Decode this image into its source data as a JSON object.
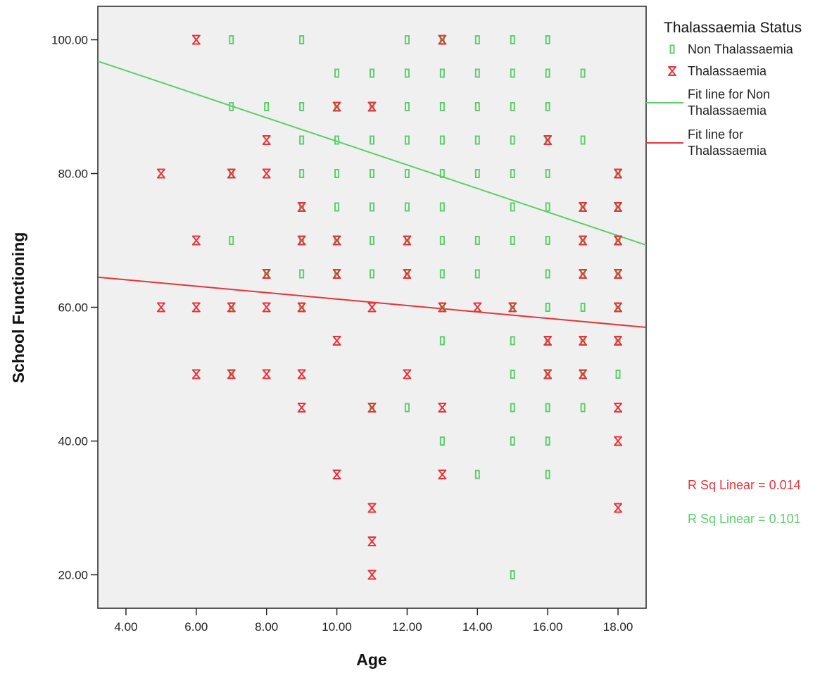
{
  "chart_data": {
    "type": "scatter",
    "title": "",
    "xlabel": "Age",
    "ylabel": "School Functioning",
    "xlim": [
      3.2,
      18.8
    ],
    "ylim": [
      15,
      105
    ],
    "x_ticks": [
      "4.00",
      "6.00",
      "8.00",
      "10.00",
      "12.00",
      "14.00",
      "16.00",
      "18.00"
    ],
    "x_tick_values": [
      4,
      6,
      8,
      10,
      12,
      14,
      16,
      18
    ],
    "y_ticks": [
      "20.00",
      "40.00",
      "60.00",
      "80.00",
      "100.00"
    ],
    "y_tick_values": [
      20,
      40,
      60,
      80,
      100
    ],
    "grid": false,
    "plot_background": "#f0f0f0",
    "legend": {
      "title": "Thalassaemia Status",
      "placement": "right",
      "entries": {
        "non": "Non Thalassaemia",
        "thal": "Thalassaemia",
        "fit_non": [
          "Fit line for Non",
          "Thalassaemia"
        ],
        "fit_thal": [
          "Fit line for",
          "Thalassaemia"
        ]
      }
    },
    "r_squared": {
      "thal": "R Sq Linear = 0.014",
      "non": "R Sq Linear = 0.101"
    },
    "series": [
      {
        "name": "Non Thalassaemia",
        "marker": "bar-icon",
        "color": "#5ccf6a",
        "points": [
          [
            7,
            100
          ],
          [
            9,
            100
          ],
          [
            12,
            100
          ],
          [
            13,
            100
          ],
          [
            14,
            100
          ],
          [
            15,
            100
          ],
          [
            16,
            100
          ],
          [
            10,
            95
          ],
          [
            11,
            95
          ],
          [
            12,
            95
          ],
          [
            13,
            95
          ],
          [
            14,
            95
          ],
          [
            15,
            95
          ],
          [
            16,
            95
          ],
          [
            17,
            95
          ],
          [
            7,
            90
          ],
          [
            8,
            90
          ],
          [
            9,
            90
          ],
          [
            10,
            90
          ],
          [
            11,
            90
          ],
          [
            12,
            90
          ],
          [
            13,
            90
          ],
          [
            14,
            90
          ],
          [
            15,
            90
          ],
          [
            16,
            90
          ],
          [
            9,
            85
          ],
          [
            10,
            85
          ],
          [
            11,
            85
          ],
          [
            12,
            85
          ],
          [
            13,
            85
          ],
          [
            14,
            85
          ],
          [
            15,
            85
          ],
          [
            16,
            85
          ],
          [
            17,
            85
          ],
          [
            7,
            80
          ],
          [
            9,
            80
          ],
          [
            10,
            80
          ],
          [
            11,
            80
          ],
          [
            12,
            80
          ],
          [
            13,
            80
          ],
          [
            14,
            80
          ],
          [
            15,
            80
          ],
          [
            16,
            80
          ],
          [
            18,
            80
          ],
          [
            9,
            75
          ],
          [
            10,
            75
          ],
          [
            11,
            75
          ],
          [
            12,
            75
          ],
          [
            13,
            75
          ],
          [
            15,
            75
          ],
          [
            16,
            75
          ],
          [
            17,
            75
          ],
          [
            18,
            75
          ],
          [
            7,
            70
          ],
          [
            9,
            70
          ],
          [
            10,
            70
          ],
          [
            11,
            70
          ],
          [
            12,
            70
          ],
          [
            13,
            70
          ],
          [
            14,
            70
          ],
          [
            15,
            70
          ],
          [
            16,
            70
          ],
          [
            17,
            70
          ],
          [
            18,
            70
          ],
          [
            8,
            65
          ],
          [
            9,
            65
          ],
          [
            10,
            65
          ],
          [
            11,
            65
          ],
          [
            12,
            65
          ],
          [
            13,
            65
          ],
          [
            14,
            65
          ],
          [
            16,
            65
          ],
          [
            17,
            65
          ],
          [
            18,
            65
          ],
          [
            7,
            60
          ],
          [
            9,
            60
          ],
          [
            13,
            60
          ],
          [
            15,
            60
          ],
          [
            16,
            60
          ],
          [
            17,
            60
          ],
          [
            18,
            60
          ],
          [
            13,
            55
          ],
          [
            15,
            55
          ],
          [
            16,
            55
          ],
          [
            17,
            55
          ],
          [
            18,
            55
          ],
          [
            7,
            50
          ],
          [
            15,
            50
          ],
          [
            16,
            50
          ],
          [
            17,
            50
          ],
          [
            18,
            50
          ],
          [
            11,
            45
          ],
          [
            12,
            45
          ],
          [
            15,
            45
          ],
          [
            16,
            45
          ],
          [
            17,
            45
          ],
          [
            13,
            40
          ],
          [
            15,
            40
          ],
          [
            16,
            40
          ],
          [
            14,
            35
          ],
          [
            16,
            35
          ],
          [
            15,
            20
          ]
        ]
      },
      {
        "name": "Thalassaemia",
        "marker": "hourglass-icon",
        "color": "#e8333a",
        "points": [
          [
            6,
            100
          ],
          [
            13,
            100
          ],
          [
            10,
            90
          ],
          [
            11,
            90
          ],
          [
            8,
            85
          ],
          [
            16,
            85
          ],
          [
            5,
            80
          ],
          [
            7,
            80
          ],
          [
            8,
            80
          ],
          [
            18,
            80
          ],
          [
            9,
            75
          ],
          [
            17,
            75
          ],
          [
            18,
            75
          ],
          [
            6,
            70
          ],
          [
            9,
            70
          ],
          [
            10,
            70
          ],
          [
            12,
            70
          ],
          [
            17,
            70
          ],
          [
            18,
            70
          ],
          [
            8,
            65
          ],
          [
            10,
            65
          ],
          [
            12,
            65
          ],
          [
            17,
            65
          ],
          [
            18,
            65
          ],
          [
            5,
            60
          ],
          [
            6,
            60
          ],
          [
            7,
            60
          ],
          [
            8,
            60
          ],
          [
            9,
            60
          ],
          [
            11,
            60
          ],
          [
            13,
            60
          ],
          [
            14,
            60
          ],
          [
            15,
            60
          ],
          [
            18,
            60
          ],
          [
            10,
            55
          ],
          [
            16,
            55
          ],
          [
            17,
            55
          ],
          [
            18,
            55
          ],
          [
            6,
            50
          ],
          [
            7,
            50
          ],
          [
            8,
            50
          ],
          [
            9,
            50
          ],
          [
            12,
            50
          ],
          [
            16,
            50
          ],
          [
            17,
            50
          ],
          [
            9,
            45
          ],
          [
            11,
            45
          ],
          [
            13,
            45
          ],
          [
            18,
            45
          ],
          [
            18,
            40
          ],
          [
            10,
            35
          ],
          [
            13,
            35
          ],
          [
            11,
            30
          ],
          [
            18,
            30
          ],
          [
            11,
            25
          ],
          [
            11,
            20
          ]
        ]
      }
    ],
    "fit_lines": [
      {
        "name": "Fit line for Non Thalassaemia",
        "color": "#5ccf6a",
        "x": [
          3.2,
          18.8
        ],
        "y": [
          96.8,
          69.3
        ]
      },
      {
        "name": "Fit line for Thalassaemia",
        "color": "#e8333a",
        "x": [
          3.2,
          18.8
        ],
        "y": [
          64.5,
          57.0
        ]
      }
    ]
  }
}
